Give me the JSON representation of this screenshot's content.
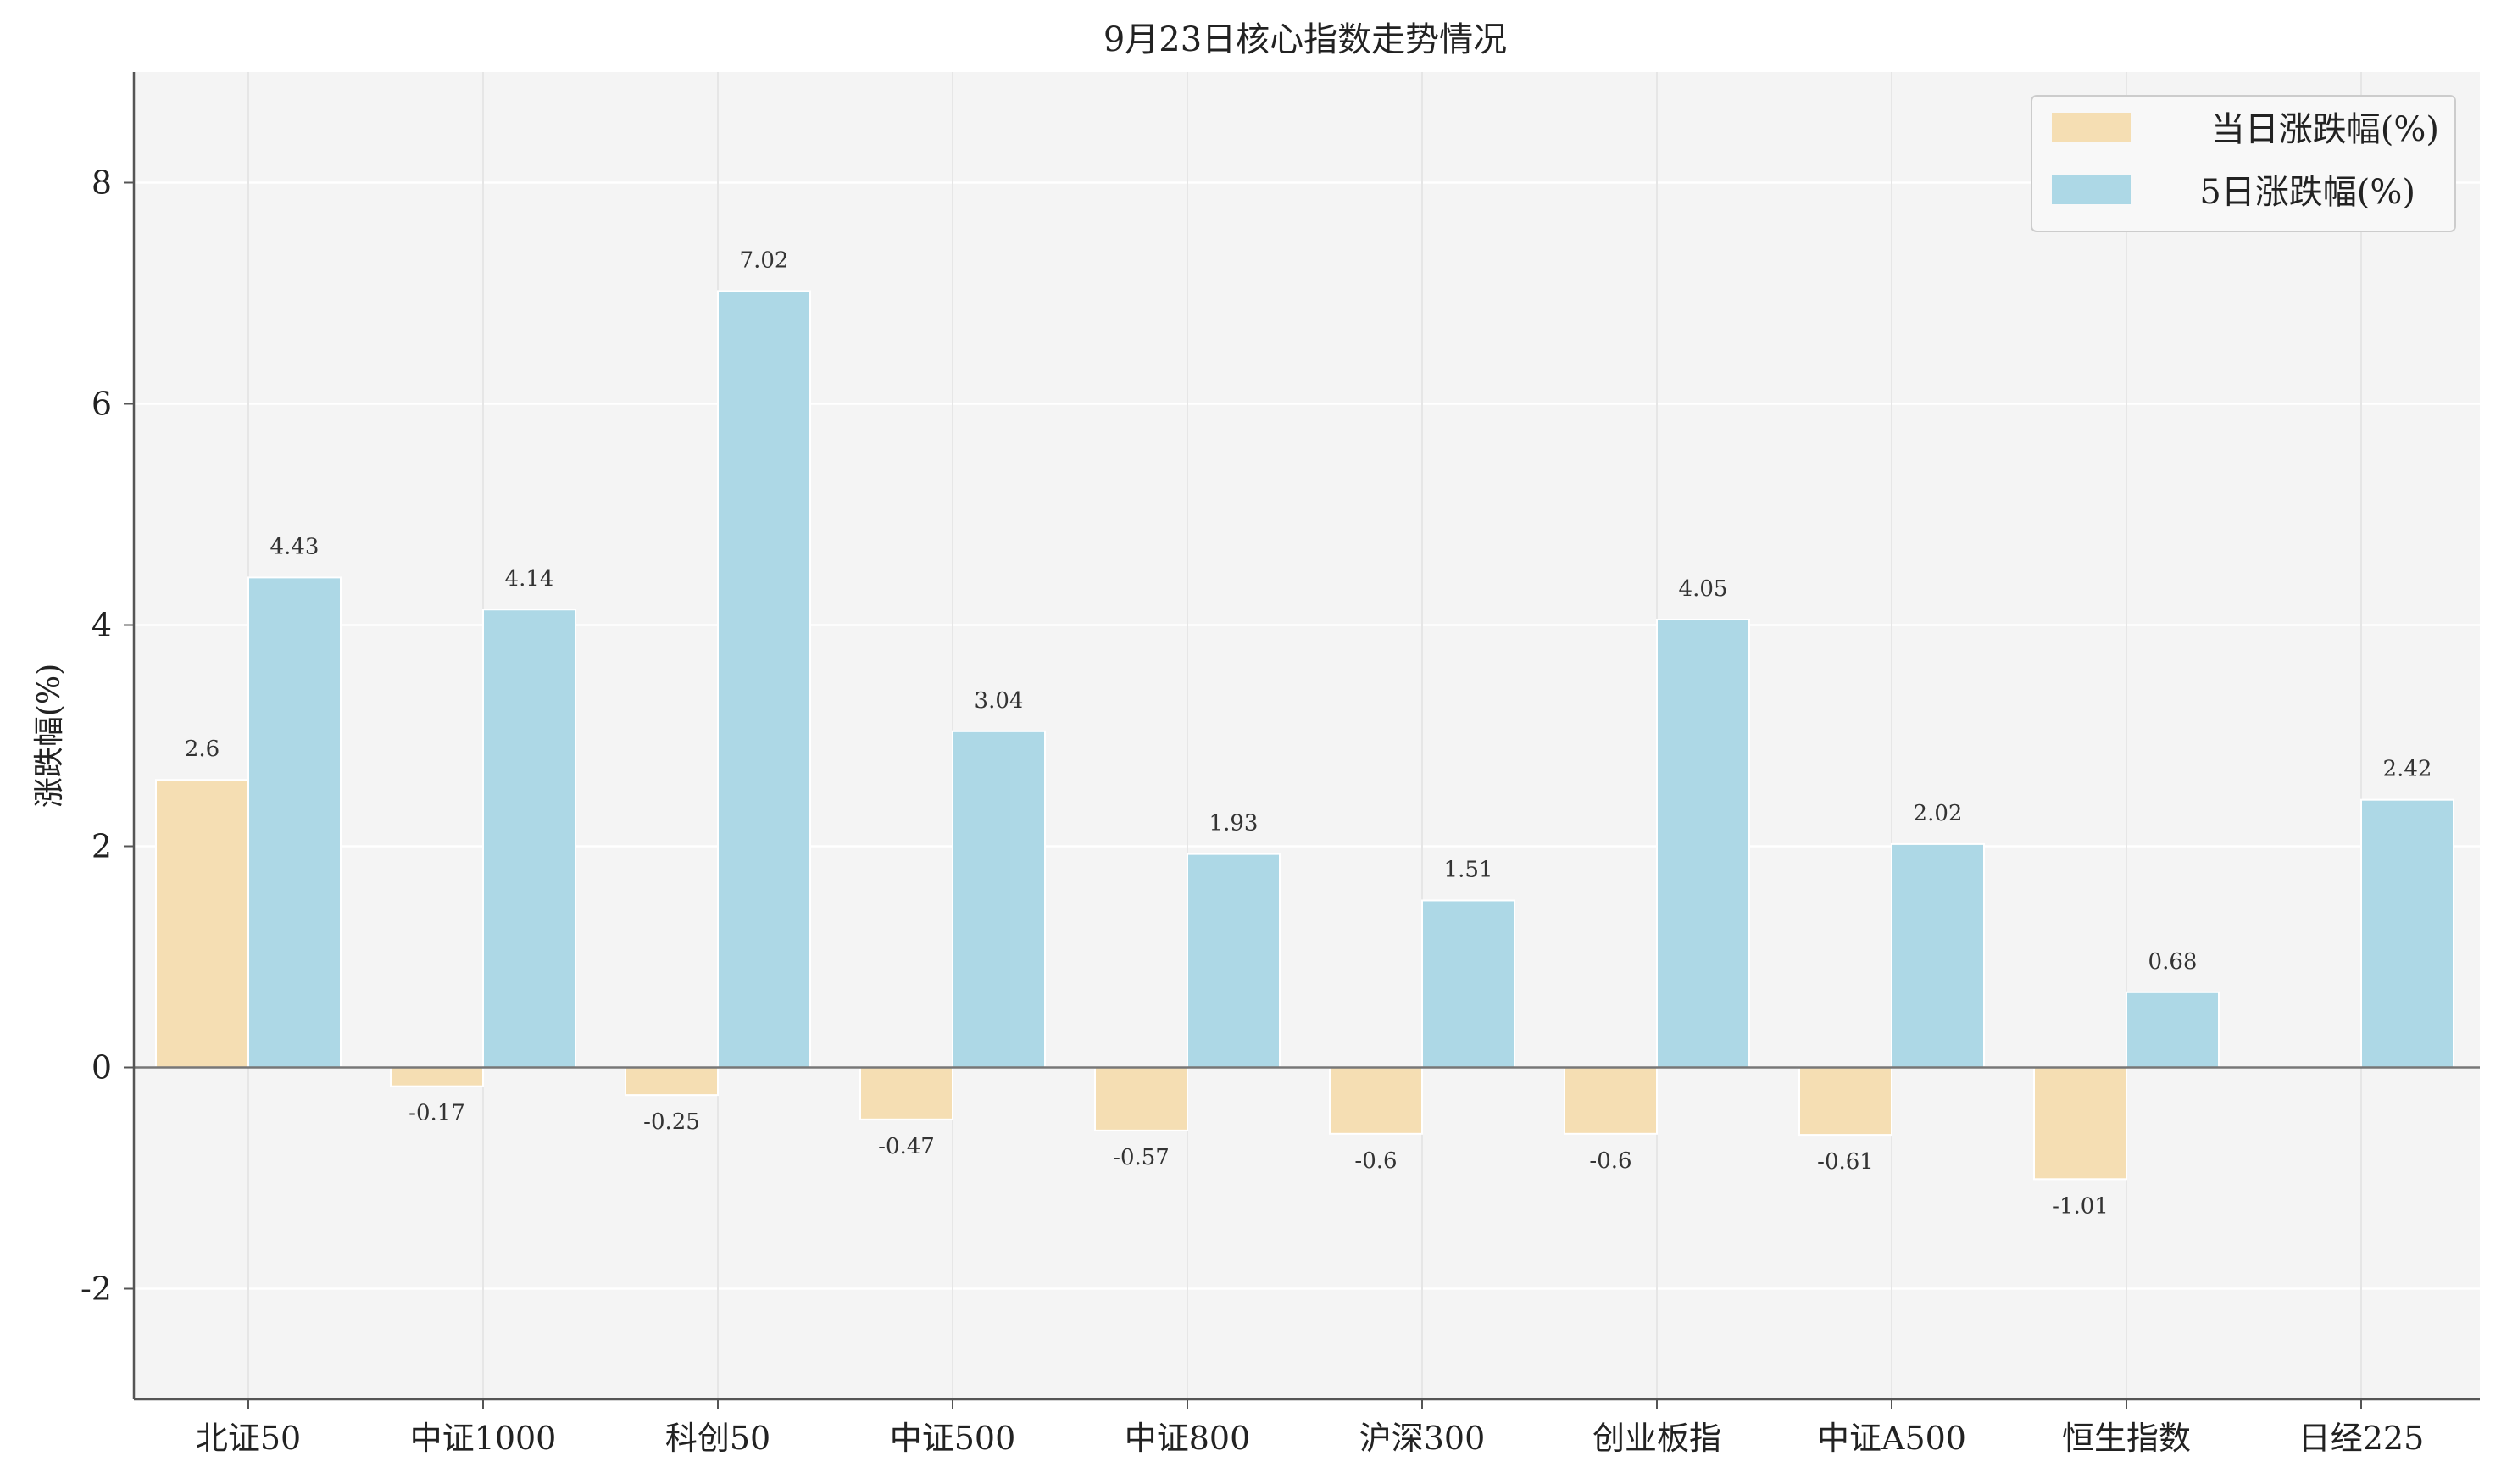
{
  "chart_data": {
    "type": "bar",
    "title": "9月23日核心指数走势情况",
    "xlabel": "",
    "ylabel": "涨跌幅(%)",
    "ylim": [
      -3,
      9
    ],
    "yticks": [
      -2,
      0,
      2,
      4,
      6,
      8
    ],
    "grid": true,
    "legend_position": "top-right",
    "categories": [
      "北证50",
      "中证1000",
      "科创50",
      "中证500",
      "中证800",
      "沪深300",
      "创业板指",
      "中证A500",
      "恒生指数",
      "日经225"
    ],
    "series": [
      {
        "name": "当日涨跌幅(%)",
        "color": "#f5deb3",
        "values": [
          2.6,
          -0.17,
          -0.25,
          -0.47,
          -0.57,
          -0.6,
          -0.6,
          -0.61,
          -1.01,
          null
        ]
      },
      {
        "name": "5日涨跌幅(%)",
        "color": "#add8e6",
        "values": [
          4.43,
          4.14,
          7.02,
          3.04,
          1.93,
          1.51,
          4.05,
          2.02,
          0.68,
          2.42
        ]
      }
    ]
  }
}
